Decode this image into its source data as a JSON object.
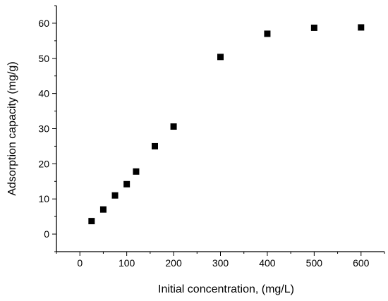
{
  "chart_data": {
    "type": "scatter",
    "xlabel": "Initial concentration, (mg/L)",
    "ylabel": "Adsorption capacity (mg/g)",
    "xlim": [
      -50,
      650
    ],
    "ylim": [
      -5,
      65
    ],
    "xticks": [
      0,
      100,
      200,
      300,
      400,
      500,
      600
    ],
    "yticks": [
      0,
      10,
      20,
      30,
      40,
      50,
      60
    ],
    "grid": false,
    "marker_color": "#000000",
    "series": [
      {
        "x": [
          25,
          50,
          75,
          100,
          120,
          160,
          200,
          300,
          400,
          500,
          600
        ],
        "y": [
          3.7,
          7.0,
          11.0,
          14.2,
          17.8,
          25.0,
          30.6,
          50.4,
          57.0,
          58.7,
          58.8
        ]
      }
    ]
  }
}
